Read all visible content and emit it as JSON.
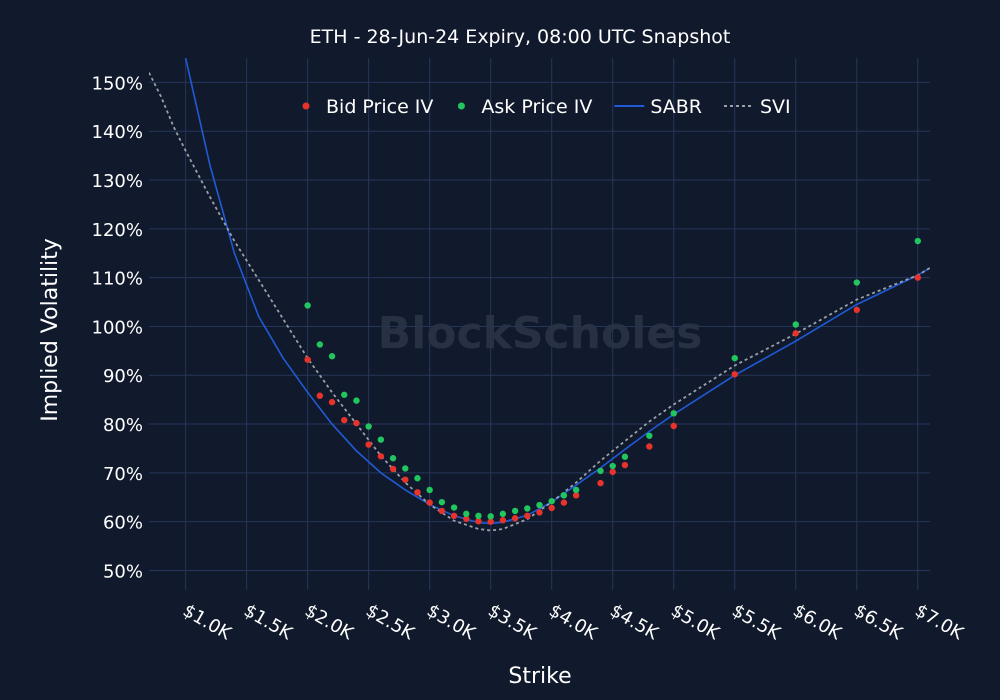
{
  "chart_data": {
    "type": "scatter",
    "title": "ETH - 28-Jun-24 Expiry, 08:00 UTC Snapshot",
    "xlabel": "Strike",
    "ylabel": "Implied Volatility",
    "watermark": "BlockScholes",
    "xlim": [
      700,
      7100
    ],
    "ylim": [
      46,
      155
    ],
    "x_ticks": [
      1000,
      1500,
      2000,
      2500,
      3000,
      3500,
      4000,
      4500,
      5000,
      5500,
      6000,
      6500,
      7000
    ],
    "x_tick_labels": [
      "$1.0K",
      "$1.5K",
      "$2.0K",
      "$2.5K",
      "$3.0K",
      "$3.5K",
      "$4.0K",
      "$4.5K",
      "$5.0K",
      "$5.5K",
      "$6.0K",
      "$6.5K",
      "$7.0K"
    ],
    "y_ticks": [
      50,
      60,
      70,
      80,
      90,
      100,
      110,
      120,
      130,
      140,
      150
    ],
    "y_tick_labels": [
      "50%",
      "60%",
      "70%",
      "80%",
      "90%",
      "100%",
      "110%",
      "120%",
      "130%",
      "140%",
      "150%"
    ],
    "legend": [
      {
        "name": "Bid Price IV",
        "kind": "marker",
        "color": "#e8332c"
      },
      {
        "name": "Ask Price IV",
        "kind": "marker",
        "color": "#22c55e"
      },
      {
        "name": "SABR",
        "kind": "line",
        "color": "#1f5bd6"
      },
      {
        "name": "SVI",
        "kind": "dotted",
        "color": "#9aa0a8"
      }
    ],
    "series": [
      {
        "name": "Bid Price IV",
        "kind": "scatter",
        "color": "#e8332c",
        "points": [
          [
            2000,
            93.2
          ],
          [
            2100,
            85.8
          ],
          [
            2200,
            84.5
          ],
          [
            2300,
            80.8
          ],
          [
            2400,
            80.2
          ],
          [
            2500,
            75.8
          ],
          [
            2600,
            73.4
          ],
          [
            2700,
            70.8
          ],
          [
            2800,
            68.6
          ],
          [
            2900,
            66.0
          ],
          [
            3000,
            63.9
          ],
          [
            3100,
            62.2
          ],
          [
            3200,
            61.2
          ],
          [
            3300,
            60.6
          ],
          [
            3400,
            60.1
          ],
          [
            3500,
            60.0
          ],
          [
            3600,
            60.3
          ],
          [
            3700,
            60.7
          ],
          [
            3800,
            61.2
          ],
          [
            3900,
            61.9
          ],
          [
            4000,
            62.8
          ],
          [
            4100,
            63.9
          ],
          [
            4200,
            65.4
          ],
          [
            4400,
            67.9
          ],
          [
            4500,
            70.2
          ],
          [
            4600,
            71.6
          ],
          [
            4800,
            75.4
          ],
          [
            5000,
            79.6
          ],
          [
            5500,
            90.2
          ],
          [
            6000,
            98.6
          ],
          [
            6500,
            103.4
          ],
          [
            7000,
            110.0
          ]
        ]
      },
      {
        "name": "Ask Price IV",
        "kind": "scatter",
        "color": "#22c55e",
        "points": [
          [
            2000,
            104.3
          ],
          [
            2100,
            96.3
          ],
          [
            2200,
            93.9
          ],
          [
            2300,
            86.0
          ],
          [
            2400,
            84.8
          ],
          [
            2500,
            79.5
          ],
          [
            2600,
            76.8
          ],
          [
            2700,
            73.0
          ],
          [
            2800,
            70.9
          ],
          [
            2900,
            68.9
          ],
          [
            3000,
            66.5
          ],
          [
            3100,
            64.0
          ],
          [
            3200,
            62.9
          ],
          [
            3300,
            61.6
          ],
          [
            3400,
            61.2
          ],
          [
            3500,
            61.1
          ],
          [
            3600,
            61.6
          ],
          [
            3700,
            62.2
          ],
          [
            3800,
            62.7
          ],
          [
            3900,
            63.4
          ],
          [
            4000,
            64.2
          ],
          [
            4100,
            65.4
          ],
          [
            4200,
            66.5
          ],
          [
            4400,
            70.4
          ],
          [
            4500,
            71.4
          ],
          [
            4600,
            73.3
          ],
          [
            4800,
            77.6
          ],
          [
            5000,
            82.2
          ],
          [
            5500,
            93.5
          ],
          [
            6000,
            100.4
          ],
          [
            6500,
            109.0
          ],
          [
            7000,
            117.5
          ]
        ]
      },
      {
        "name": "SABR",
        "kind": "line",
        "color": "#1f5bd6",
        "points": [
          [
            1000,
            155
          ],
          [
            1200,
            133
          ],
          [
            1400,
            115
          ],
          [
            1600,
            102
          ],
          [
            1800,
            93.5
          ],
          [
            2000,
            86.5
          ],
          [
            2200,
            80.0
          ],
          [
            2400,
            74.5
          ],
          [
            2600,
            70.0
          ],
          [
            2800,
            66.5
          ],
          [
            3000,
            63.5
          ],
          [
            3200,
            61.2
          ],
          [
            3400,
            59.8
          ],
          [
            3500,
            59.6
          ],
          [
            3600,
            59.9
          ],
          [
            3800,
            61.3
          ],
          [
            4000,
            64.0
          ],
          [
            4200,
            67.5
          ],
          [
            4400,
            71.0
          ],
          [
            4600,
            74.8
          ],
          [
            4800,
            78.5
          ],
          [
            5000,
            82.0
          ],
          [
            5500,
            90.0
          ],
          [
            6000,
            97.0
          ],
          [
            6500,
            104.5
          ],
          [
            7000,
            110.5
          ],
          [
            7100,
            112.0
          ]
        ]
      },
      {
        "name": "SVI",
        "kind": "dotted",
        "color": "#9aa0a8",
        "points": [
          [
            700,
            152
          ],
          [
            800,
            147
          ],
          [
            900,
            141
          ],
          [
            1000,
            136
          ],
          [
            1200,
            126.5
          ],
          [
            1400,
            117.5
          ],
          [
            1600,
            109.5
          ],
          [
            1800,
            101.5
          ],
          [
            2000,
            93.5
          ],
          [
            2200,
            86.5
          ],
          [
            2400,
            80.0
          ],
          [
            2600,
            73.5
          ],
          [
            2800,
            68.0
          ],
          [
            3000,
            63.5
          ],
          [
            3200,
            60.2
          ],
          [
            3400,
            58.5
          ],
          [
            3500,
            58.2
          ],
          [
            3600,
            58.5
          ],
          [
            3800,
            60.5
          ],
          [
            4000,
            64.0
          ],
          [
            4200,
            68.0
          ],
          [
            4400,
            72.5
          ],
          [
            4600,
            76.5
          ],
          [
            4800,
            80.5
          ],
          [
            5000,
            84.0
          ],
          [
            5500,
            92.0
          ],
          [
            6000,
            98.5
          ],
          [
            6500,
            105.5
          ],
          [
            7000,
            110.5
          ],
          [
            7100,
            112.0
          ]
        ]
      }
    ]
  }
}
